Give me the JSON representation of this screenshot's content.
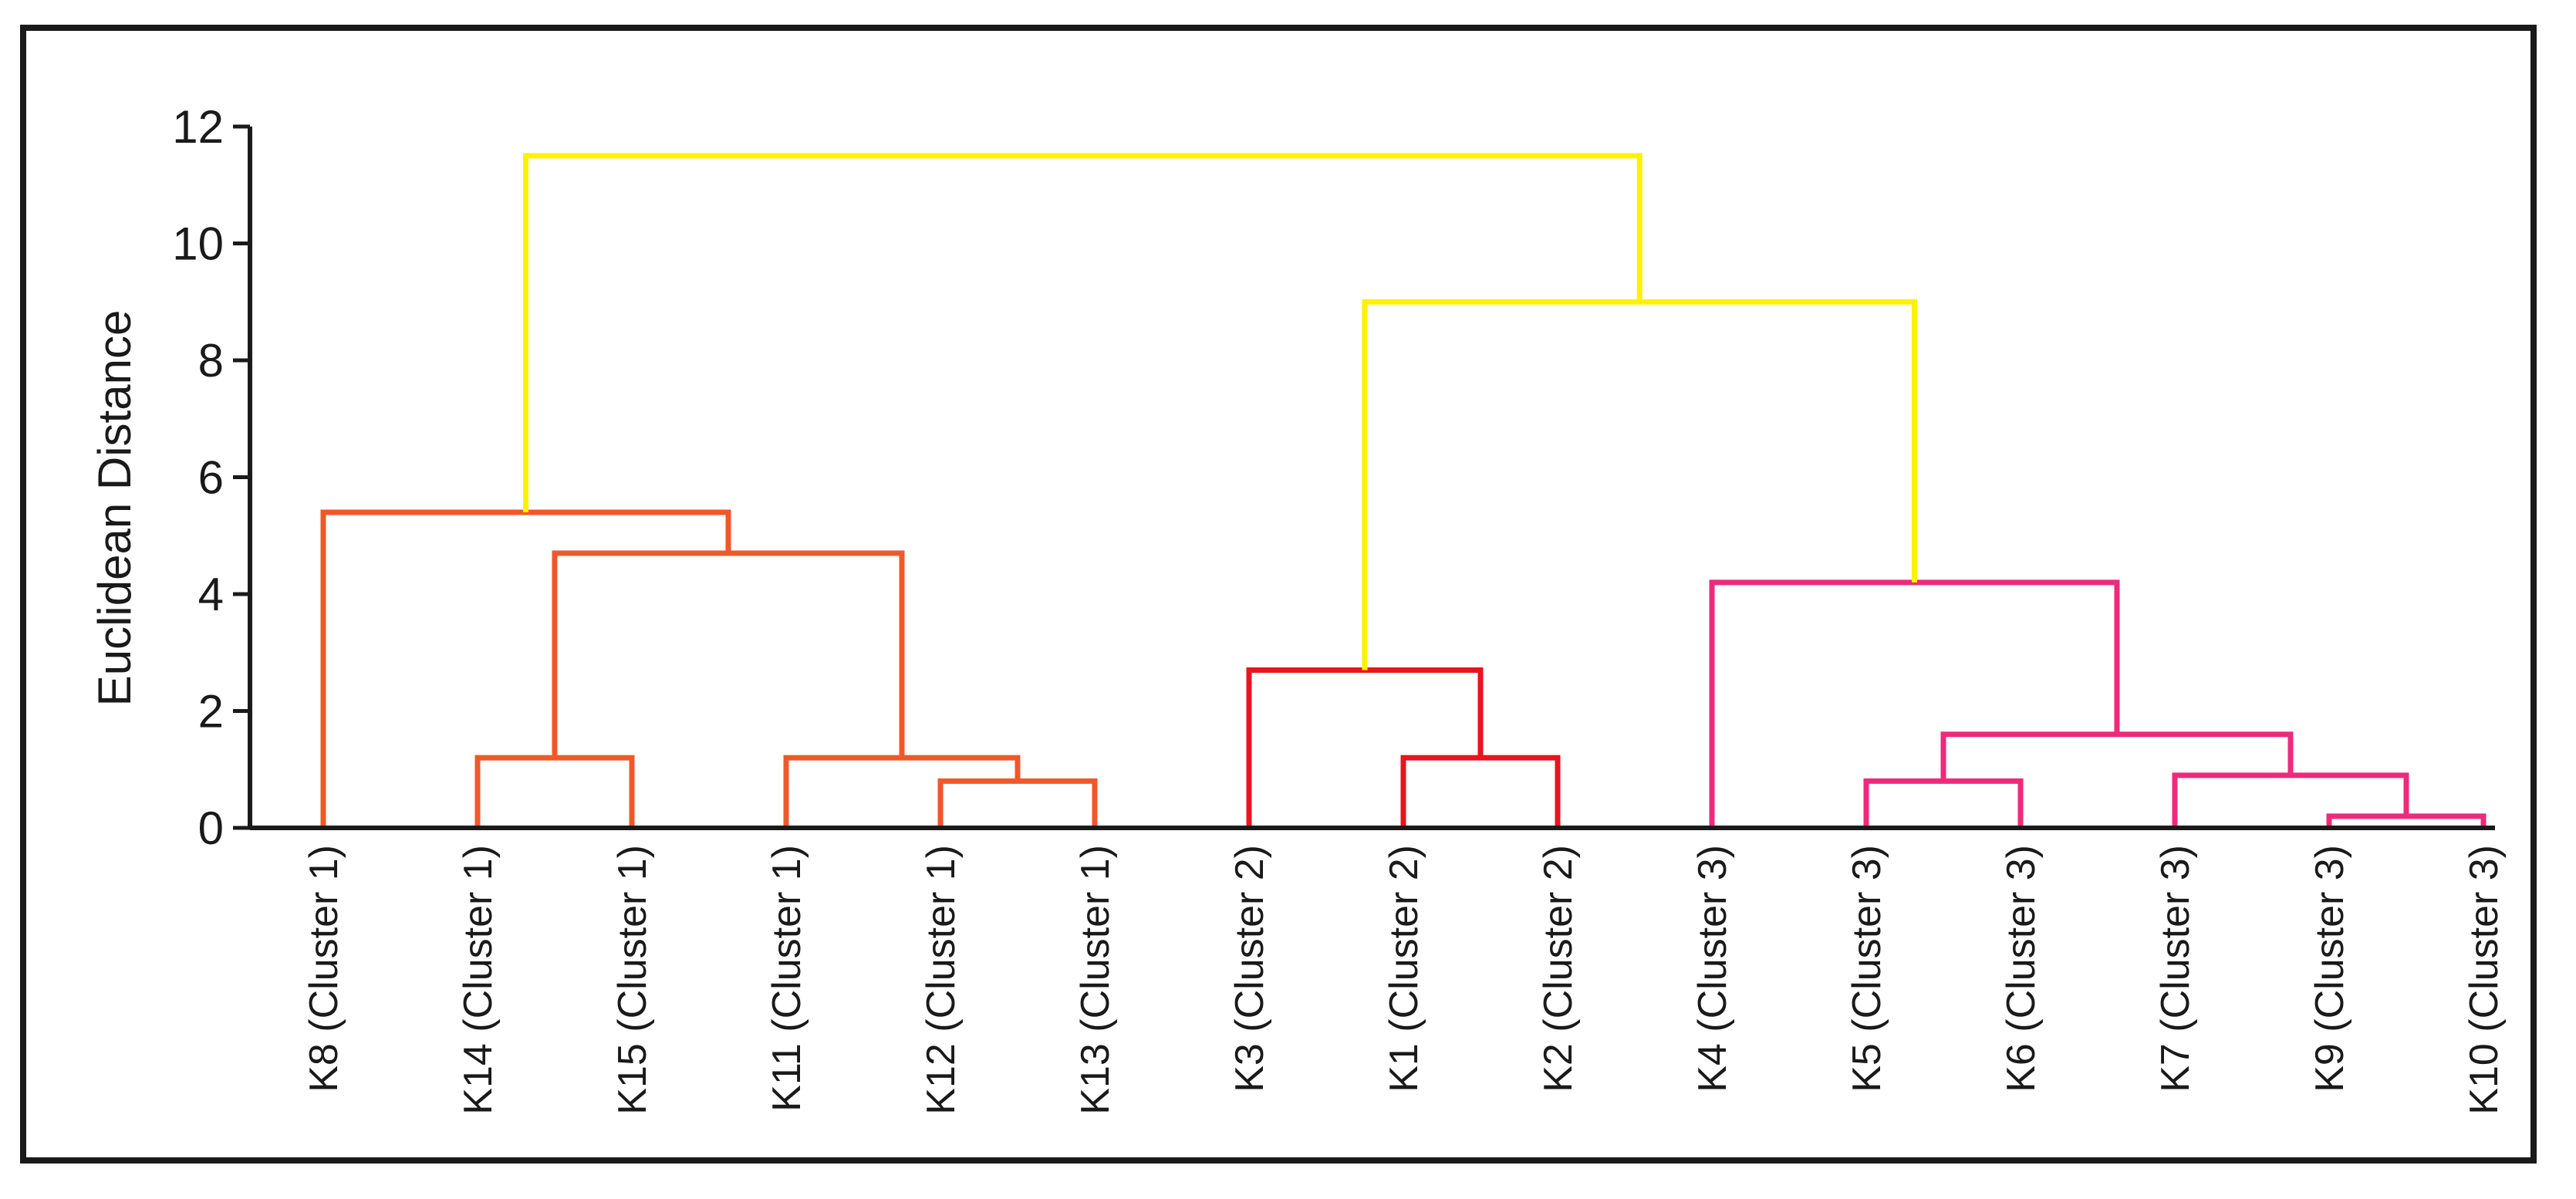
{
  "chart_data": {
    "type": "dendrogram",
    "title": "",
    "xlabel": "",
    "ylabel": "Euclidean Distance",
    "ylim": [
      0,
      12
    ],
    "yticks": [
      "0",
      "2",
      "4",
      "6",
      "8",
      "10",
      "12"
    ],
    "leaves": [
      {
        "id": "K8",
        "label": "K8 (Cluster 1)",
        "cluster": 1
      },
      {
        "id": "K14",
        "label": "K14 (Cluster 1)",
        "cluster": 1
      },
      {
        "id": "K15",
        "label": "K15 (Cluster 1)",
        "cluster": 1
      },
      {
        "id": "K11",
        "label": "K11 (Cluster 1)",
        "cluster": 1
      },
      {
        "id": "K12",
        "label": "K12 (Cluster 1)",
        "cluster": 1
      },
      {
        "id": "K13",
        "label": "K13 (Cluster 1)",
        "cluster": 1
      },
      {
        "id": "K3",
        "label": "K3 (Cluster 2)",
        "cluster": 2
      },
      {
        "id": "K1",
        "label": "K1 (Cluster 2)",
        "cluster": 2
      },
      {
        "id": "K2",
        "label": "K2 (Cluster 2)",
        "cluster": 2
      },
      {
        "id": "K4",
        "label": "K4 (Cluster 3)",
        "cluster": 3
      },
      {
        "id": "K5",
        "label": "K5 (Cluster 3)",
        "cluster": 3
      },
      {
        "id": "K6",
        "label": "K6 (Cluster 3)",
        "cluster": 3
      },
      {
        "id": "K7",
        "label": "K7 (Cluster 3)",
        "cluster": 3
      },
      {
        "id": "K9",
        "label": "K9 (Cluster 3)",
        "cluster": 3
      },
      {
        "id": "K10",
        "label": "K10 (Cluster 3)",
        "cluster": 3
      }
    ],
    "merges": [
      {
        "id": "A",
        "children": [
          "K14",
          "K15"
        ],
        "height": 1.2,
        "color": "cluster1"
      },
      {
        "id": "B",
        "children": [
          "K12",
          "K13"
        ],
        "height": 0.8,
        "color": "cluster1"
      },
      {
        "id": "C",
        "children": [
          "K11",
          "B"
        ],
        "height": 1.2,
        "color": "cluster1"
      },
      {
        "id": "D",
        "children": [
          "A",
          "C"
        ],
        "height": 4.7,
        "color": "cluster1"
      },
      {
        "id": "E",
        "children": [
          "K8",
          "D"
        ],
        "height": 5.4,
        "color": "cluster1"
      },
      {
        "id": "F",
        "children": [
          "K1",
          "K2"
        ],
        "height": 1.2,
        "color": "cluster2"
      },
      {
        "id": "G",
        "children": [
          "K3",
          "F"
        ],
        "height": 2.7,
        "color": "cluster2"
      },
      {
        "id": "H",
        "children": [
          "K5",
          "K6"
        ],
        "height": 0.8,
        "color": "cluster3"
      },
      {
        "id": "I",
        "children": [
          "K9",
          "K10"
        ],
        "height": 0.2,
        "color": "cluster3"
      },
      {
        "id": "J",
        "children": [
          "K7",
          "I"
        ],
        "height": 0.9,
        "color": "cluster3"
      },
      {
        "id": "L",
        "children": [
          "H",
          "J"
        ],
        "height": 1.6,
        "color": "cluster3"
      },
      {
        "id": "M",
        "children": [
          "K4",
          "L"
        ],
        "height": 4.2,
        "color": "cluster3"
      },
      {
        "id": "N",
        "children": [
          "G",
          "M"
        ],
        "height": 9.0,
        "color": "top"
      },
      {
        "id": "ROOT",
        "children": [
          "E",
          "N"
        ],
        "height": 11.5,
        "color": "top"
      }
    ],
    "colors": {
      "cluster1": "#f0582a",
      "cluster2": "#e8141e",
      "cluster3": "#ee2a7b",
      "top": "#fff200",
      "axis": "#1a1a1a"
    }
  }
}
